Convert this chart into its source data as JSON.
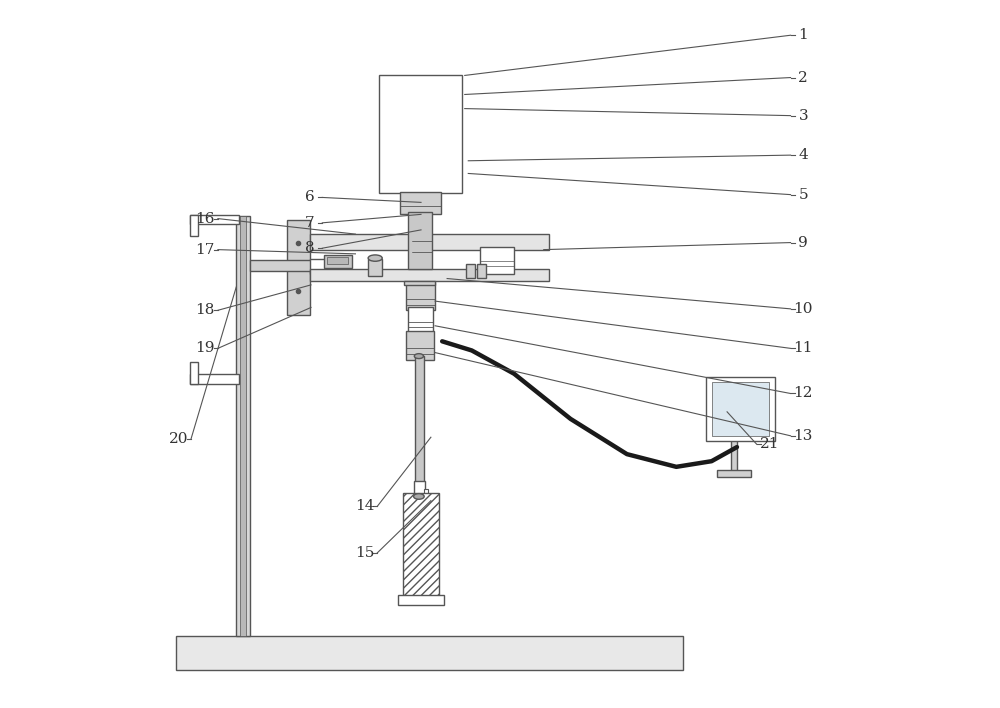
{
  "bg_color": "#ffffff",
  "line_color": "#555555",
  "text_color": "#333333",
  "fig_width": 10.0,
  "fig_height": 7.08
}
